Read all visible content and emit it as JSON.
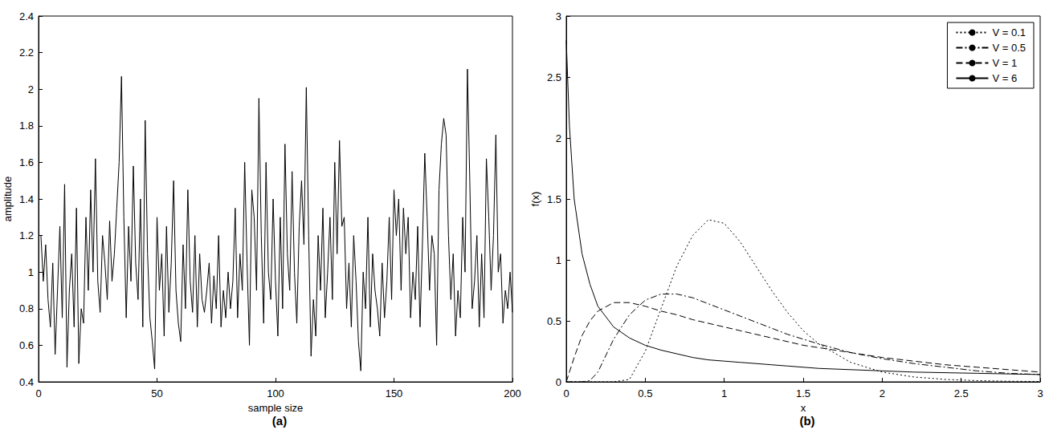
{
  "chart_data": [
    {
      "type": "line",
      "title": "(a)",
      "x_label": "sample size",
      "y_label": "amplitude",
      "x": [
        1,
        2,
        3,
        4,
        5,
        6,
        7,
        8,
        9,
        10,
        11,
        12,
        13,
        14,
        15,
        16,
        17,
        18,
        19,
        20,
        21,
        22,
        23,
        24,
        25,
        26,
        27,
        28,
        29,
        30,
        31,
        32,
        33,
        34,
        35,
        36,
        37,
        38,
        39,
        40,
        41,
        42,
        43,
        44,
        45,
        46,
        47,
        48,
        49,
        50,
        51,
        52,
        53,
        54,
        55,
        56,
        57,
        58,
        59,
        60,
        61,
        62,
        63,
        64,
        65,
        66,
        67,
        68,
        69,
        70,
        71,
        72,
        73,
        74,
        75,
        76,
        77,
        78,
        79,
        80,
        81,
        82,
        83,
        84,
        85,
        86,
        87,
        88,
        89,
        90,
        91,
        92,
        93,
        94,
        95,
        96,
        97,
        98,
        99,
        100,
        101,
        102,
        103,
        104,
        105,
        106,
        107,
        108,
        109,
        110,
        111,
        112,
        113,
        114,
        115,
        116,
        117,
        118,
        119,
        120,
        121,
        122,
        123,
        124,
        125,
        126,
        127,
        128,
        129,
        130,
        131,
        132,
        133,
        134,
        135,
        136,
        137,
        138,
        139,
        140,
        141,
        142,
        143,
        144,
        145,
        146,
        147,
        148,
        149,
        150,
        151,
        152,
        153,
        154,
        155,
        156,
        157,
        158,
        159,
        160,
        161,
        162,
        163,
        164,
        165,
        166,
        167,
        168,
        169,
        170,
        171,
        172,
        173,
        174,
        175,
        176,
        177,
        178,
        179,
        180,
        181,
        182,
        183,
        184,
        185,
        186,
        187,
        188,
        189,
        190,
        191,
        192,
        193,
        194,
        195,
        196,
        197,
        198,
        199,
        200
      ],
      "values": [
        1.2,
        0.95,
        1.15,
        0.85,
        0.7,
        1.05,
        0.55,
        0.9,
        1.25,
        0.75,
        1.48,
        0.48,
        0.9,
        1.1,
        0.7,
        1.35,
        0.5,
        0.8,
        0.72,
        1.3,
        0.9,
        1.45,
        1.0,
        1.62,
        0.95,
        0.78,
        1.2,
        1.05,
        0.85,
        1.28,
        0.95,
        1.1,
        1.35,
        1.6,
        2.07,
        1.3,
        0.75,
        1.25,
        0.95,
        1.58,
        1.05,
        0.85,
        1.4,
        0.7,
        1.83,
        1.1,
        0.75,
        0.62,
        0.47,
        1.3,
        0.9,
        1.1,
        0.65,
        1.25,
        0.78,
        1.05,
        1.5,
        0.9,
        0.72,
        0.62,
        1.15,
        0.8,
        1.45,
        0.95,
        0.78,
        1.2,
        0.7,
        1.1,
        0.85,
        0.78,
        0.9,
        1.05,
        0.72,
        0.98,
        0.8,
        1.2,
        0.7,
        0.9,
        0.75,
        1.0,
        0.8,
        0.95,
        1.35,
        0.75,
        1.1,
        0.9,
        1.6,
        1.05,
        0.6,
        1.45,
        1.3,
        0.9,
        1.95,
        1.2,
        0.72,
        1.6,
        1.0,
        0.85,
        1.4,
        0.95,
        0.65,
        1.3,
        0.8,
        1.7,
        1.1,
        0.9,
        1.55,
        1.0,
        0.72,
        1.25,
        1.5,
        1.15,
        2.01,
        1.2,
        0.54,
        0.85,
        0.65,
        1.2,
        0.9,
        1.35,
        0.75,
        1.0,
        1.3,
        0.85,
        1.6,
        1.1,
        1.72,
        1.25,
        1.3,
        0.8,
        1.05,
        0.7,
        1.2,
        0.95,
        0.62,
        0.46,
        1.0,
        0.8,
        1.3,
        0.7,
        1.1,
        0.9,
        0.8,
        0.65,
        1.05,
        0.75,
        0.95,
        1.3,
        0.85,
        1.45,
        1.2,
        1.4,
        0.9,
        1.35,
        1.1,
        1.3,
        0.75,
        1.0,
        0.85,
        1.25,
        0.7,
        1.15,
        1.65,
        1.3,
        0.9,
        1.2,
        1.1,
        0.6,
        1.45,
        1.7,
        1.84,
        1.75,
        1.2,
        0.85,
        1.1,
        0.65,
        0.9,
        0.75,
        1.3,
        1.0,
        2.11,
        1.5,
        0.8,
        0.95,
        1.2,
        0.7,
        1.1,
        0.75,
        1.62,
        1.3,
        0.9,
        1.2,
        1.75,
        1.0,
        1.1,
        0.72,
        0.9,
        0.8,
        1.0,
        0.78
      ],
      "color": "#000000",
      "line_style": "solid",
      "xlim": [
        0,
        200
      ],
      "xticks": [
        0,
        50,
        100,
        150,
        200
      ],
      "ylim": [
        0.4,
        2.4
      ],
      "yticks": [
        0.4,
        0.6,
        0.8,
        1,
        1.2,
        1.4,
        1.6,
        1.8,
        2,
        2.2,
        2.4
      ],
      "grid": false
    },
    {
      "type": "line",
      "title": "(b)",
      "x_label": "x",
      "y_label": "f(x)",
      "x": [
        0,
        0.02,
        0.05,
        0.1,
        0.15,
        0.2,
        0.3,
        0.4,
        0.5,
        0.6,
        0.7,
        0.8,
        0.9,
        1.0,
        1.1,
        1.2,
        1.3,
        1.4,
        1.5,
        1.6,
        1.8,
        2.0,
        2.2,
        2.4,
        2.6,
        2.8,
        3.0
      ],
      "series": [
        {
          "name": "V = 0.1",
          "color": "#000000",
          "line_style": "dotted",
          "values": [
            0,
            0,
            0,
            0,
            0,
            0,
            0,
            0.02,
            0.25,
            0.6,
            0.95,
            1.2,
            1.33,
            1.3,
            1.15,
            0.95,
            0.75,
            0.57,
            0.42,
            0.31,
            0.16,
            0.08,
            0.04,
            0.02,
            0.01,
            0.005,
            0.003
          ]
        },
        {
          "name": "V = 0.5",
          "color": "#000000",
          "line_style": "dashdot",
          "values": [
            0,
            0,
            0,
            0,
            0.01,
            0.08,
            0.35,
            0.55,
            0.67,
            0.72,
            0.72,
            0.69,
            0.64,
            0.59,
            0.54,
            0.49,
            0.44,
            0.39,
            0.35,
            0.31,
            0.24,
            0.19,
            0.15,
            0.12,
            0.09,
            0.07,
            0.06
          ]
        },
        {
          "name": "V = 1",
          "color": "#000000",
          "line_style": "dashed",
          "values": [
            0,
            0.08,
            0.2,
            0.38,
            0.5,
            0.58,
            0.65,
            0.65,
            0.62,
            0.58,
            0.55,
            0.51,
            0.48,
            0.45,
            0.42,
            0.39,
            0.36,
            0.33,
            0.3,
            0.28,
            0.24,
            0.2,
            0.17,
            0.14,
            0.12,
            0.1,
            0.08
          ]
        },
        {
          "name": "V = 6",
          "color": "#000000",
          "line_style": "solid",
          "values": [
            2.8,
            2.1,
            1.5,
            1.05,
            0.8,
            0.62,
            0.45,
            0.36,
            0.3,
            0.26,
            0.23,
            0.2,
            0.18,
            0.17,
            0.16,
            0.15,
            0.14,
            0.13,
            0.12,
            0.11,
            0.1,
            0.09,
            0.08,
            0.075,
            0.07,
            0.065,
            0.06
          ]
        }
      ],
      "xlim": [
        0,
        3
      ],
      "xticks": [
        0,
        0.5,
        1,
        1.5,
        2,
        2.5,
        3
      ],
      "ylim": [
        0,
        3
      ],
      "yticks": [
        0,
        0.5,
        1,
        1.5,
        2,
        2.5,
        3
      ],
      "legend": "upper right",
      "grid": false
    }
  ]
}
